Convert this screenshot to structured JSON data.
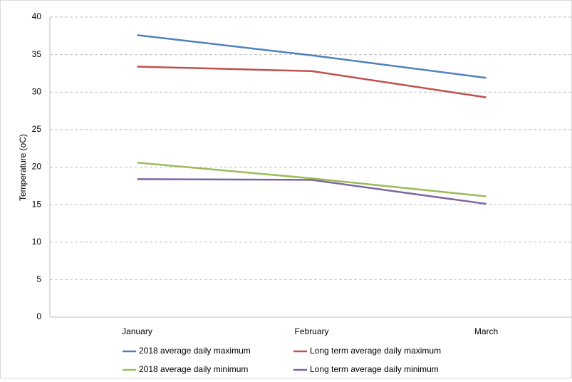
{
  "chart_data": {
    "type": "line",
    "y_label": "Temperature (oC)",
    "categories": [
      "January",
      "February",
      "March"
    ],
    "series": [
      {
        "name": "2018 average daily maximum",
        "color": "#4f81bd",
        "values": [
          37.6,
          34.9,
          31.9
        ]
      },
      {
        "name": "Long term average daily maximum",
        "color": "#c0504d",
        "values": [
          33.4,
          32.8,
          29.3
        ]
      },
      {
        "name": "2018 average daily minimum",
        "color": "#9bbb59",
        "values": [
          20.6,
          18.5,
          16.1
        ]
      },
      {
        "name": "Long term average daily  minimum",
        "color": "#8064a2",
        "values": [
          18.4,
          18.3,
          15.1
        ]
      }
    ],
    "ylim": [
      0,
      40
    ],
    "yticks": [
      0,
      5,
      10,
      15,
      20,
      25,
      30,
      35,
      40
    ],
    "grid": true
  }
}
